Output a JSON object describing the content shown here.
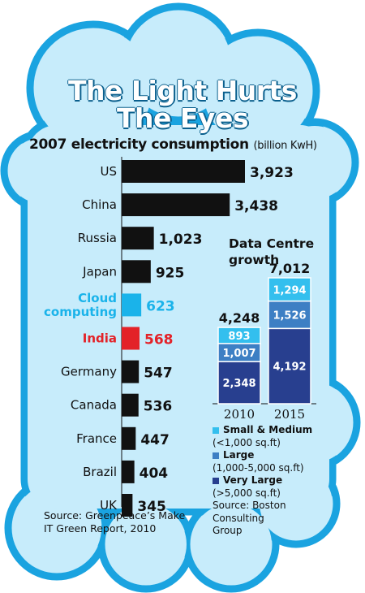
{
  "title": [
    "The Light Hurts",
    "The Eyes"
  ],
  "subtitle": "2007 electricity consumption",
  "unit": "(billion KwH)",
  "colors": {
    "cloud_fill": "#c7ecfb",
    "cloud_stroke": "#1aa3e0",
    "bar_default": "#111111",
    "bar_cloud": "#1ab3ea",
    "bar_india": "#e32228",
    "label_cloud": "#1ab3ea",
    "label_india": "#e32228",
    "dc_small": "#33bfee",
    "dc_large": "#3d7fc4",
    "dc_verylarge": "#283f8f"
  },
  "source_left": [
    "Source: Greenpeace’s Make",
    "IT Green Report, 2010"
  ],
  "chart_data": [
    {
      "type": "bar",
      "orientation": "horizontal",
      "title": "2007 electricity consumption",
      "unit": "(billion KwH)",
      "categories": [
        "US",
        "China",
        "Russia",
        "Japan",
        "Cloud computing",
        "India",
        "Germany",
        "Canada",
        "France",
        "Brazil",
        "UK"
      ],
      "category_lines": [
        [
          "US"
        ],
        [
          "China"
        ],
        [
          "Russia"
        ],
        [
          "Japan"
        ],
        [
          "Cloud",
          "computing"
        ],
        [
          "India"
        ],
        [
          "Germany"
        ],
        [
          "Canada"
        ],
        [
          "France"
        ],
        [
          "Brazil"
        ],
        [
          "UK"
        ]
      ],
      "values": [
        3923,
        3438,
        1023,
        925,
        623,
        568,
        547,
        536,
        447,
        404,
        345
      ],
      "value_labels": [
        "3,923",
        "3,438",
        "1,023",
        "925",
        "623",
        "568",
        "547",
        "536",
        "447",
        "404",
        "345"
      ],
      "highlights": {
        "Cloud computing": "#1ab3ea",
        "India": "#e32228"
      }
    },
    {
      "type": "bar",
      "stacked": true,
      "title": "Data Centre growth",
      "title_lines": [
        "Data Centre",
        "growth"
      ],
      "categories": [
        "2010",
        "2015"
      ],
      "totals": [
        "4,248",
        "7,012"
      ],
      "series": [
        {
          "name": "Very Large",
          "detail": "(>5,000 sq.ft)",
          "values": [
            2348,
            4192
          ],
          "labels": [
            "2,348",
            "4,192"
          ],
          "color": "#283f8f"
        },
        {
          "name": "Large",
          "detail": "(1,000-5,000 sq.ft)",
          "values": [
            1007,
            1526
          ],
          "labels": [
            "1,007",
            "1,526"
          ],
          "color": "#3d7fc4"
        },
        {
          "name": "Small & Medium",
          "detail": "(<1,000 sq.ft)",
          "values": [
            893,
            1294
          ],
          "labels": [
            "893",
            "1,294"
          ],
          "color": "#33bfee"
        }
      ],
      "source": [
        "Source: Boston",
        "Consulting",
        "Group"
      ]
    }
  ]
}
